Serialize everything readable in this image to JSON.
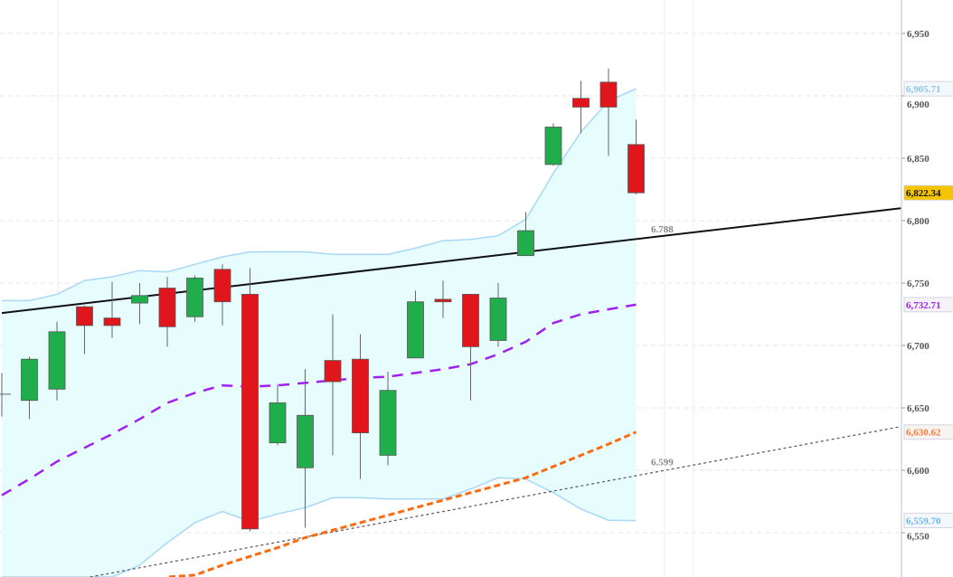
{
  "chart_data": {
    "type": "candlestick",
    "title": "",
    "ylim": [
      6532,
      6977
    ],
    "yticks": [
      "6,550",
      "6,600",
      "6,650",
      "6,700",
      "6,750",
      "6,800",
      "6,850",
      "6,900",
      "6,950"
    ],
    "ytick_values": [
      6550,
      6600,
      6650,
      6700,
      6750,
      6800,
      6850,
      6900,
      6950
    ],
    "grid": true,
    "colors": {
      "up": "#1fae4b",
      "down": "#e0161c",
      "band_fill": "#e6fcfd",
      "band_line": "#a8d8f8",
      "middle": "#a020f0",
      "ma": "#ff6a10",
      "trend": "#111111",
      "dotted": "#555555"
    },
    "candles": [
      {
        "o": 6661,
        "h": 6678,
        "l": 6643,
        "c": 6661
      },
      {
        "o": 6656,
        "h": 6691,
        "l": 6641,
        "c": 6689
      },
      {
        "o": 6665,
        "h": 6719,
        "l": 6656,
        "c": 6711
      },
      {
        "o": 6731,
        "h": 6732,
        "l": 6693,
        "c": 6716
      },
      {
        "o": 6722,
        "h": 6751,
        "l": 6706,
        "c": 6716
      },
      {
        "o": 6734,
        "h": 6750,
        "l": 6717,
        "c": 6740
      },
      {
        "o": 6746,
        "h": 6755,
        "l": 6699,
        "c": 6715
      },
      {
        "o": 6723,
        "h": 6756,
        "l": 6719,
        "c": 6754
      },
      {
        "o": 6761,
        "h": 6765,
        "l": 6716,
        "c": 6735
      },
      {
        "o": 6741,
        "h": 6762,
        "l": 6551,
        "c": 6553
      },
      {
        "o": 6622,
        "h": 6669,
        "l": 6620,
        "c": 6654
      },
      {
        "o": 6602,
        "h": 6681,
        "l": 6554,
        "c": 6644
      },
      {
        "o": 6688,
        "h": 6725,
        "l": 6612,
        "c": 6671
      },
      {
        "o": 6689,
        "h": 6709,
        "l": 6593,
        "c": 6630
      },
      {
        "o": 6612,
        "h": 6679,
        "l": 6604,
        "c": 6664
      },
      {
        "o": 6690,
        "h": 6744,
        "l": 6690,
        "c": 6735
      },
      {
        "o": 6737,
        "h": 6752,
        "l": 6722,
        "c": 6735
      },
      {
        "o": 6741,
        "h": 6741,
        "l": 6656,
        "c": 6699
      },
      {
        "o": 6704,
        "h": 6750,
        "l": 6699,
        "c": 6738
      },
      {
        "o": 6772,
        "h": 6807,
        "l": 6772,
        "c": 6792
      },
      {
        "o": 6845,
        "h": 6878,
        "l": 6844,
        "c": 6875
      },
      {
        "o": 6898,
        "h": 6912,
        "l": 6870,
        "c": 6891
      },
      {
        "o": 6911,
        "h": 6922,
        "l": 6852,
        "c": 6891
      },
      {
        "o": 6861,
        "h": 6881,
        "l": 6821,
        "c": 6822.34
      }
    ],
    "upper_band": [
      6736,
      6736,
      6741,
      6752,
      6755,
      6760,
      6759,
      6765,
      6771,
      6775,
      6775,
      6775,
      6773,
      6773,
      6773,
      6778,
      6784,
      6785,
      6788,
      6801,
      6838,
      6871,
      6896,
      6905.71
    ],
    "lower_band": [
      6460,
      6470,
      6480,
      6490,
      6505,
      6524,
      6542,
      6558,
      6567,
      6559,
      6565,
      6570,
      6578,
      6578,
      6577,
      6577,
      6577,
      6585,
      6594,
      6593,
      6582,
      6569,
      6560,
      6559.7
    ],
    "middle_band": [
      6580,
      6593,
      6607,
      6618,
      6629,
      6641,
      6654,
      6662,
      6668,
      6667,
      6668,
      6670,
      6672,
      6674,
      6675,
      6678,
      6681,
      6685,
      6693,
      6703,
      6718,
      6725,
      6729,
      6732.71
    ],
    "moving_average": [
      null,
      null,
      null,
      null,
      null,
      null,
      6508,
      6516,
      6524,
      6531,
      6538,
      6546,
      6552,
      6558,
      6564,
      6570,
      6576,
      6582,
      6588,
      6594,
      6603,
      6612,
      6621,
      6630.62
    ],
    "trendline": {
      "start": [
        0,
        6726
      ],
      "end": [
        32.6,
        6810
      ],
      "label": "6.788",
      "label_at": 24
    },
    "dotted_line": {
      "start": [
        3.2,
        6514.5
      ],
      "end": [
        32.6,
        6635
      ],
      "label": "6.599",
      "label_at": 24
    },
    "price_tags": [
      {
        "text": "6,905.71",
        "value": 6905.71,
        "color": "#8cc4ee",
        "bg": "#f4f8fb"
      },
      {
        "text": "6,822.34",
        "value": 6822.34,
        "color": "#111111",
        "bg": "#f5c400"
      },
      {
        "text": "6,732.71",
        "value": 6732.71,
        "color": "#a020f0",
        "bg": "#f4f4f8"
      },
      {
        "text": "6,630.62",
        "value": 6630.62,
        "color": "#ff7a3a",
        "bg": "#f8f4f2"
      },
      {
        "text": "6,559.70",
        "value": 6559.7,
        "color": "#6ab8ea",
        "bg": "#f4f8fb"
      }
    ]
  }
}
